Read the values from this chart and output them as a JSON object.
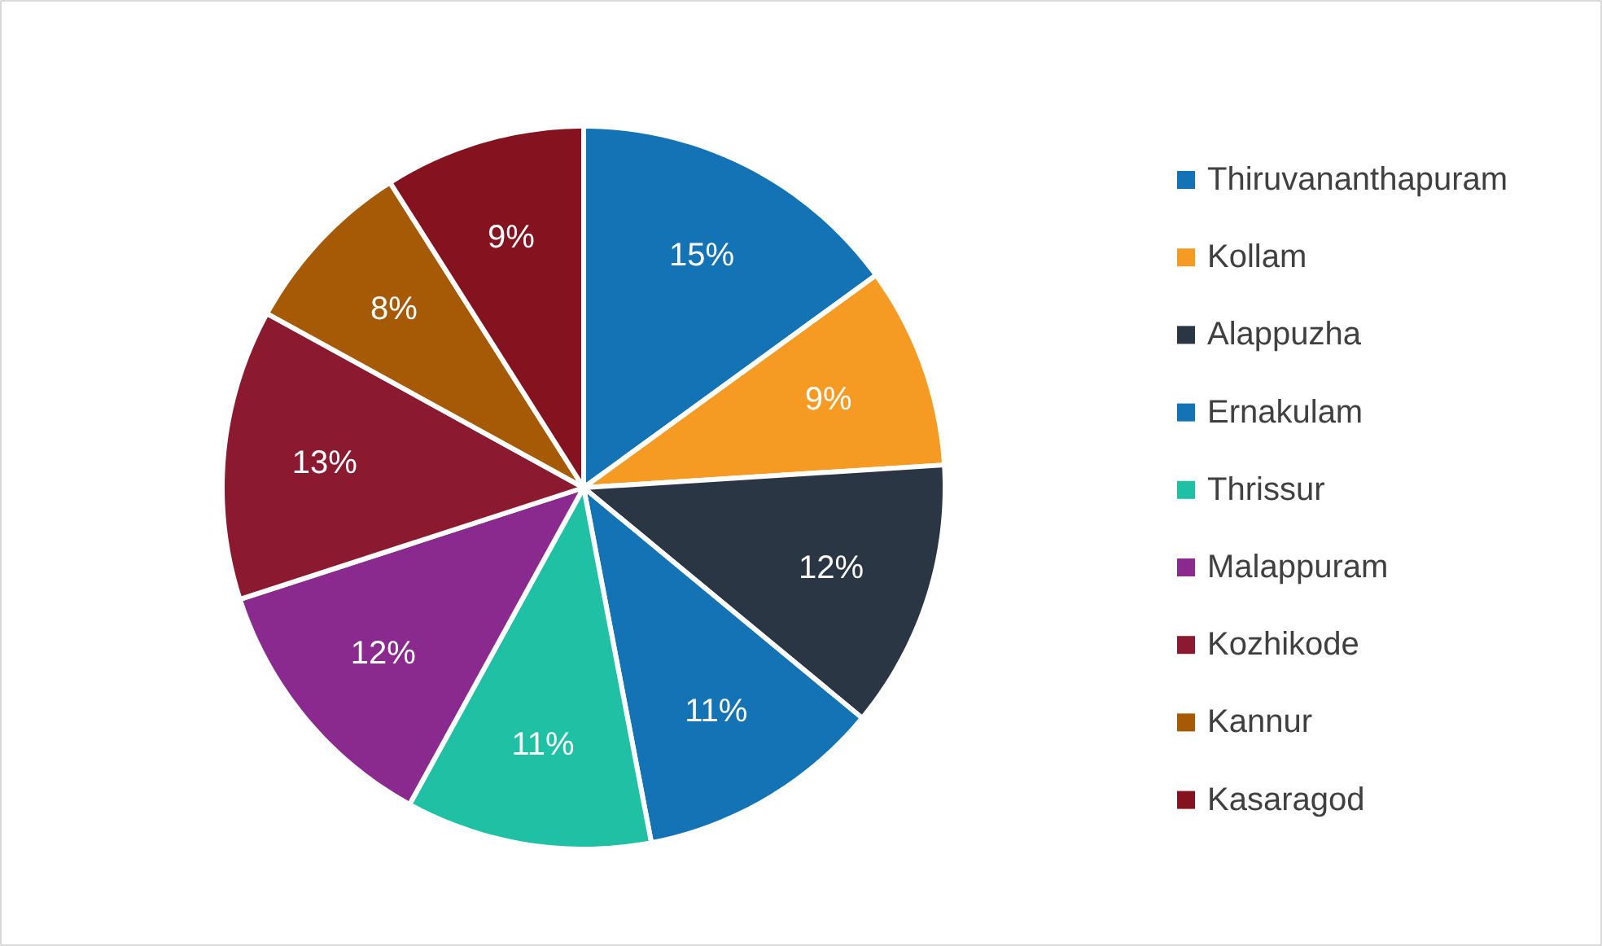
{
  "chart_data": {
    "type": "pie",
    "categories": [
      "Thiruvananthapuram",
      "Kollam",
      "Alappuzha",
      "Ernakulam",
      "Thrissur",
      "Malappuram",
      "Kozhikode",
      "Kannur",
      "Kasaragod"
    ],
    "values": [
      15,
      9,
      12,
      11,
      11,
      12,
      13,
      8,
      9
    ],
    "value_labels": [
      "15%",
      "9%",
      "12%",
      "11%",
      "11%",
      "12%",
      "13%",
      "8%",
      "9%"
    ],
    "colors": [
      "#1473b4",
      "#f59a23",
      "#2b3645",
      "#1473b4",
      "#20c0a4",
      "#8b2a8e",
      "#8b1a30",
      "#a65a06",
      "#85121f"
    ],
    "legend": "right"
  }
}
